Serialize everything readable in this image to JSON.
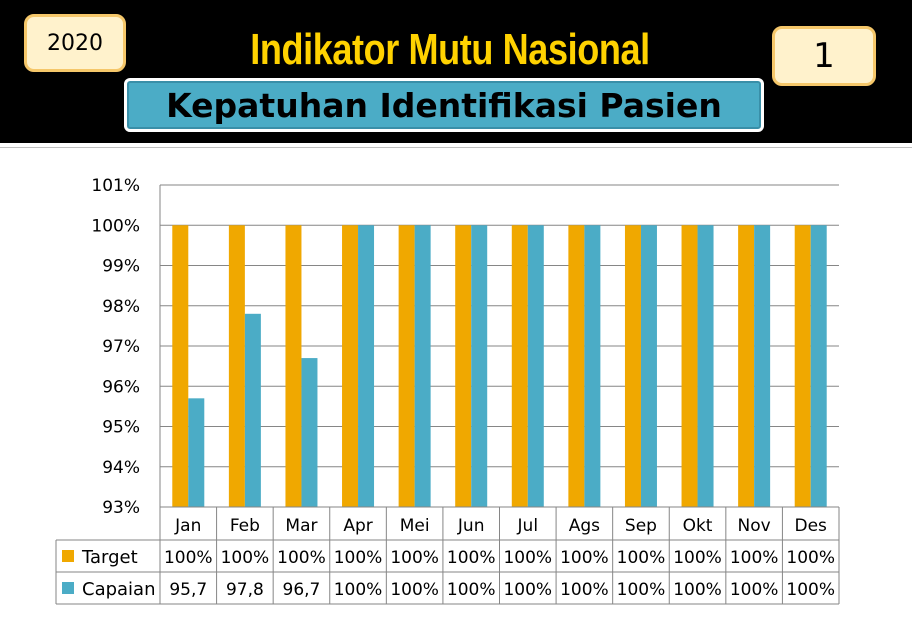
{
  "header": {
    "year": "2020",
    "title": "Indikator Mutu Nasional",
    "subtitle": "Kepatuhan Identifikasi Pasien",
    "number": "1"
  },
  "colors": {
    "target": "#f0a800",
    "capaian": "#4bacc6"
  },
  "chart_data": {
    "type": "bar",
    "categories": [
      "Jan",
      "Feb",
      "Mar",
      "Apr",
      "Mei",
      "Jun",
      "Jul",
      "Ags",
      "Sep",
      "Okt",
      "Nov",
      "Des"
    ],
    "yticks": [
      "93%",
      "94%",
      "95%",
      "96%",
      "97%",
      "98%",
      "99%",
      "100%",
      "101%"
    ],
    "ylim": [
      93,
      101
    ],
    "grid": true,
    "legend": "bottom-left (data table)",
    "series": [
      {
        "name": "Target",
        "values": [
          100,
          100,
          100,
          100,
          100,
          100,
          100,
          100,
          100,
          100,
          100,
          100
        ],
        "labels": [
          "100%",
          "100%",
          "100%",
          "100%",
          "100%",
          "100%",
          "100%",
          "100%",
          "100%",
          "100%",
          "100%",
          "100%"
        ]
      },
      {
        "name": "Capaian",
        "values": [
          95.7,
          97.8,
          96.7,
          100,
          100,
          100,
          100,
          100,
          100,
          100,
          100,
          100
        ],
        "labels": [
          "95,7",
          "97,8",
          "96,7",
          "100%",
          "100%",
          "100%",
          "100%",
          "100%",
          "100%",
          "100%",
          "100%",
          "100%"
        ]
      }
    ]
  }
}
